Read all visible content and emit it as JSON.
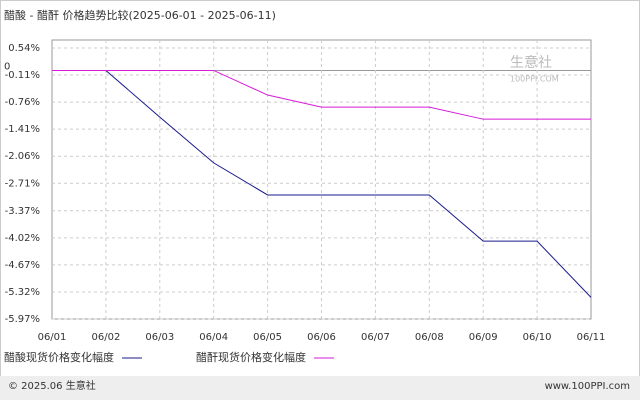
{
  "chart_data": {
    "type": "line",
    "title": "醋酸 - 醋酐 价格趋势比较(2025-06-01 - 2025-06-11)",
    "categories": [
      "06/01",
      "06/02",
      "06/03",
      "06/04",
      "06/05",
      "06/06",
      "06/07",
      "06/08",
      "06/09",
      "06/10",
      "06/11"
    ],
    "series": [
      {
        "name": "醋酸现货价格变化幅度",
        "color": "#1a1a8c",
        "values": [
          0,
          0,
          -1.12,
          -2.22,
          -2.99,
          -2.99,
          -2.99,
          -2.99,
          -4.1,
          -4.1,
          -5.45
        ]
      },
      {
        "name": "醋酐现货价格变化幅度",
        "color": "#d81bd8",
        "values": [
          0,
          0,
          0,
          0,
          -0.59,
          -0.88,
          -0.88,
          -0.88,
          -1.17,
          -1.17,
          -1.17
        ]
      }
    ],
    "ylim": [
      -5.97,
      0.54
    ],
    "yticks": [
      {
        "value": 0.54,
        "label": "0.54%"
      },
      0,
      {
        "value": -0.11,
        "label": "-0.11%"
      },
      {
        "value": -0.76,
        "label": "-0.76%"
      },
      {
        "value": -1.41,
        "label": "-1.41%"
      },
      {
        "value": -2.06,
        "label": "-2.06%"
      },
      {
        "value": -2.71,
        "label": "-2.71%"
      },
      {
        "value": -3.37,
        "label": "-3.37%"
      },
      {
        "value": -4.02,
        "label": "-4.02%"
      },
      {
        "value": -4.67,
        "label": "-4.67%"
      },
      {
        "value": -5.32,
        "label": "-5.32%"
      },
      {
        "value": -5.97,
        "label": "-5.97%"
      }
    ],
    "grid": true,
    "watermark": [
      "生意社",
      "100PPI.COM"
    ],
    "footer": {
      "left": "© 2025.06 生意社",
      "right": "www.100PPI.com"
    }
  }
}
